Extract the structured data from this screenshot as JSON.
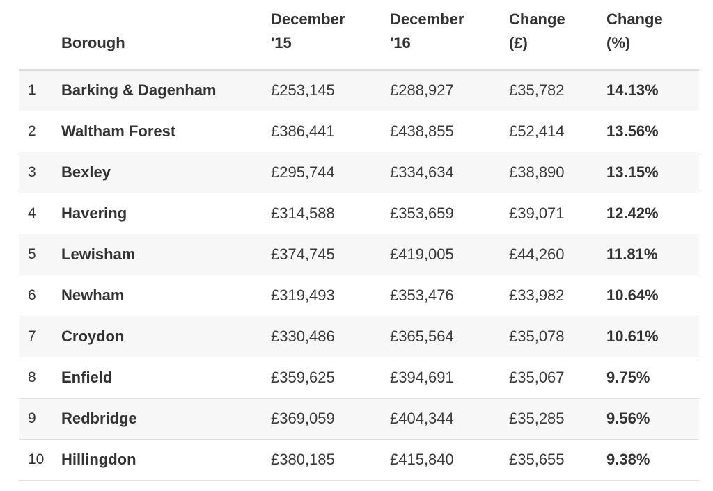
{
  "table": {
    "headers": {
      "rank": "",
      "borough": "Borough",
      "dec15": [
        "December",
        "'15"
      ],
      "dec16": [
        "December",
        "'16"
      ],
      "change": [
        "Change",
        "(£)"
      ],
      "change_pct": [
        "Change",
        "(%)"
      ]
    },
    "rows": [
      {
        "rank": "1",
        "borough": "Barking & Dagenham",
        "dec15": "£253,145",
        "dec16": "£288,927",
        "change": "£35,782",
        "change_pct": "14.13%"
      },
      {
        "rank": "2",
        "borough": "Waltham Forest",
        "dec15": "£386,441",
        "dec16": "£438,855",
        "change": "£52,414",
        "change_pct": "13.56%"
      },
      {
        "rank": "3",
        "borough": "Bexley",
        "dec15": "£295,744",
        "dec16": "£334,634",
        "change": "£38,890",
        "change_pct": "13.15%"
      },
      {
        "rank": "4",
        "borough": "Havering",
        "dec15": "£314,588",
        "dec16": "£353,659",
        "change": "£39,071",
        "change_pct": "12.42%"
      },
      {
        "rank": "5",
        "borough": "Lewisham",
        "dec15": "£374,745",
        "dec16": "£419,005",
        "change": "£44,260",
        "change_pct": "11.81%"
      },
      {
        "rank": "6",
        "borough": "Newham",
        "dec15": "£319,493",
        "dec16": "£353,476",
        "change": "£33,982",
        "change_pct": "10.64%"
      },
      {
        "rank": "7",
        "borough": "Croydon",
        "dec15": "£330,486",
        "dec16": "£365,564",
        "change": "£35,078",
        "change_pct": "10.61%"
      },
      {
        "rank": "8",
        "borough": "Enfield",
        "dec15": "£359,625",
        "dec16": "£394,691",
        "change": "£35,067",
        "change_pct": "9.75%"
      },
      {
        "rank": "9",
        "borough": "Redbridge",
        "dec15": "£369,059",
        "dec16": "£404,344",
        "change": "£35,285",
        "change_pct": "9.56%"
      },
      {
        "rank": "10",
        "borough": "Hillingdon",
        "dec15": "£380,185",
        "dec16": "£415,840",
        "change": "£35,655",
        "change_pct": "9.38%"
      }
    ]
  },
  "colors": {
    "text": "#333333",
    "row_stripe": "#f7f7f7",
    "divider": "#dedede",
    "header_rule": "#dcdcdc"
  }
}
